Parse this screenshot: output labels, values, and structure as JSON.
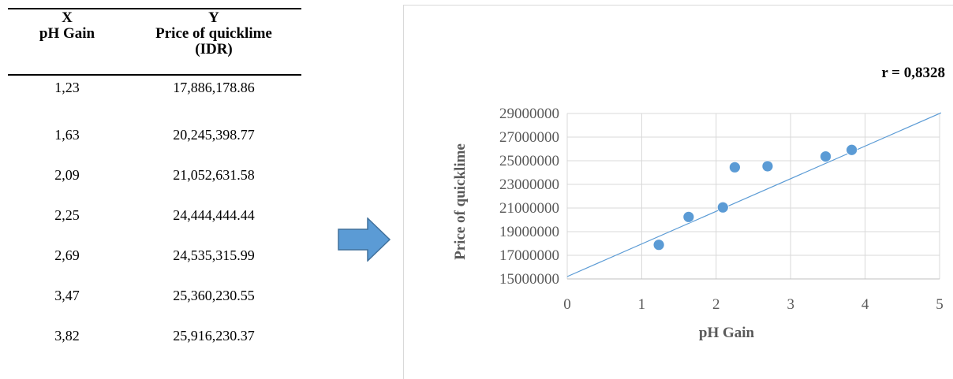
{
  "table": {
    "headers": {
      "x_line1": "X",
      "x_line2": "pH Gain",
      "y_line1": "Y",
      "y_line2": "Price of quicklime",
      "y_line3": "(IDR)"
    },
    "rows": [
      {
        "x": "1,23",
        "y": "17,886,178.86"
      },
      {
        "x": "1,63",
        "y": "20,245,398.77"
      },
      {
        "x": "2,09",
        "y": "21,052,631.58"
      },
      {
        "x": "2,25",
        "y": "24,444,444.44"
      },
      {
        "x": "2,69",
        "y": "24,535,315.99"
      },
      {
        "x": "3,47",
        "y": "25,360,230.55"
      },
      {
        "x": "3,82",
        "y": "25,916,230.37"
      }
    ]
  },
  "arrow": {
    "icon": "right-arrow-icon",
    "color": "#5b9bd5"
  },
  "chart_data": {
    "type": "scatter",
    "title": "",
    "annotation": "r = 0,8328",
    "xlabel": "pH Gain",
    "ylabel": "Price of quicklime",
    "xlim": [
      0,
      5
    ],
    "ylim": [
      15000000,
      29000000
    ],
    "x_ticks": [
      "0",
      "1",
      "2",
      "3",
      "4",
      "5"
    ],
    "y_ticks": [
      "15000000",
      "17000000",
      "19000000",
      "21000000",
      "23000000",
      "25000000",
      "27000000",
      "29000000"
    ],
    "grid": true,
    "marker_color": "#5b9bd5",
    "trendline": {
      "type": "linear",
      "color": "#5b9bd5",
      "points": [
        [
          0,
          15200000
        ],
        [
          5,
          29000000
        ]
      ]
    },
    "points": [
      {
        "x": 1.23,
        "y": 17886178.86
      },
      {
        "x": 1.63,
        "y": 20245398.77
      },
      {
        "x": 2.09,
        "y": 21052631.58
      },
      {
        "x": 2.25,
        "y": 24444444.44
      },
      {
        "x": 2.69,
        "y": 24535315.99
      },
      {
        "x": 3.47,
        "y": 25360230.55
      },
      {
        "x": 3.82,
        "y": 25916230.37
      }
    ]
  }
}
